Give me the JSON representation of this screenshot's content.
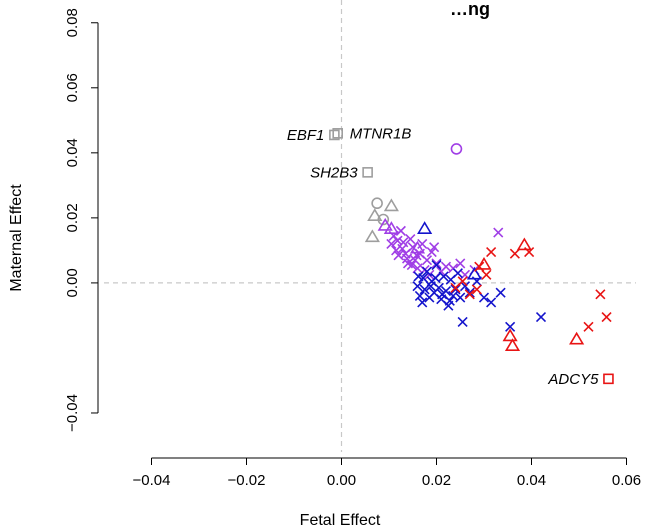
{
  "chart_data": {
    "type": "scatter",
    "title": "…ng",
    "xlabel": "Fetal Effect",
    "ylabel": "Maternal Effect",
    "xlim": [
      -0.05,
      0.062
    ],
    "ylim": [
      -0.052,
      0.087
    ],
    "xticks": [
      "-0.04",
      "-0.02",
      "0.00",
      "0.02",
      "0.04",
      "0.06"
    ],
    "yticks": [
      "-0.04",
      "0.00",
      "0.02",
      "0.04",
      "0.06",
      "0.08"
    ],
    "xtick_values": [
      -0.04,
      -0.02,
      0.0,
      0.02,
      0.04,
      0.06
    ],
    "ytick_values": [
      -0.04,
      0.0,
      0.02,
      0.04,
      0.06,
      0.08
    ],
    "reference_lines": {
      "x": 0,
      "y": 0,
      "style": "dashed"
    },
    "colors": {
      "grey": "#9e9e9e",
      "purple": "#a03ee6",
      "blue": "#1414cc",
      "red": "#e81414"
    },
    "series": [
      {
        "color": "grey",
        "marker": "square",
        "points": [
          {
            "x": -0.0015,
            "y": 0.0455,
            "label": "EBF1"
          },
          {
            "x": -0.0008,
            "y": 0.046,
            "label": "MTNR1B"
          },
          {
            "x": 0.0055,
            "y": 0.034,
            "label": "SH2B3"
          }
        ]
      },
      {
        "color": "grey",
        "marker": "circle",
        "points": [
          {
            "x": 0.0075,
            "y": 0.0245
          },
          {
            "x": 0.0088,
            "y": 0.0195
          }
        ]
      },
      {
        "color": "grey",
        "marker": "triangle",
        "points": [
          {
            "x": 0.0105,
            "y": 0.0235
          },
          {
            "x": 0.007,
            "y": 0.0205
          },
          {
            "x": 0.0065,
            "y": 0.014
          }
        ]
      },
      {
        "color": "purple",
        "marker": "circle",
        "points": [
          {
            "x": 0.0242,
            "y": 0.0412
          }
        ]
      },
      {
        "color": "purple",
        "marker": "triangle",
        "points": [
          {
            "x": 0.0092,
            "y": 0.0175
          },
          {
            "x": 0.0105,
            "y": 0.0165
          },
          {
            "x": 0.016,
            "y": 0.0105
          }
        ]
      },
      {
        "color": "purple",
        "marker": "cross",
        "points": [
          {
            "x": 0.0105,
            "y": 0.012
          },
          {
            "x": 0.011,
            "y": 0.0145
          },
          {
            "x": 0.0115,
            "y": 0.01
          },
          {
            "x": 0.012,
            "y": 0.0085
          },
          {
            "x": 0.0125,
            "y": 0.016
          },
          {
            "x": 0.013,
            "y": 0.0125
          },
          {
            "x": 0.0135,
            "y": 0.009
          },
          {
            "x": 0.014,
            "y": 0.006
          },
          {
            "x": 0.0145,
            "y": 0.0135
          },
          {
            "x": 0.015,
            "y": 0.011
          },
          {
            "x": 0.0155,
            "y": 0.007
          },
          {
            "x": 0.016,
            "y": 0.0045
          },
          {
            "x": 0.0165,
            "y": 0.009
          },
          {
            "x": 0.017,
            "y": 0.012
          },
          {
            "x": 0.0175,
            "y": 0.004
          },
          {
            "x": 0.018,
            "y": 0.007
          },
          {
            "x": 0.0185,
            "y": 0.0025
          },
          {
            "x": 0.019,
            "y": 0.0095
          },
          {
            "x": 0.0195,
            "y": 0.011
          },
          {
            "x": 0.02,
            "y": 0.006
          },
          {
            "x": 0.021,
            "y": 0.0035
          },
          {
            "x": 0.022,
            "y": 0.005
          },
          {
            "x": 0.0235,
            "y": 0.0045
          },
          {
            "x": 0.025,
            "y": 0.006
          },
          {
            "x": 0.026,
            "y": 0.0025
          },
          {
            "x": 0.028,
            "y": 0.004
          },
          {
            "x": 0.033,
            "y": 0.0155
          },
          {
            "x": 0.0128,
            "y": 0.0105
          },
          {
            "x": 0.0138,
            "y": 0.0075
          },
          {
            "x": 0.0148,
            "y": 0.0055
          },
          {
            "x": 0.0118,
            "y": 0.013
          },
          {
            "x": 0.0158,
            "y": 0.0085
          }
        ]
      },
      {
        "color": "blue",
        "marker": "triangle",
        "points": [
          {
            "x": 0.0175,
            "y": 0.0165
          },
          {
            "x": 0.028,
            "y": 0.0025
          }
        ]
      },
      {
        "color": "blue",
        "marker": "cross",
        "points": [
          {
            "x": 0.016,
            "y": -0.001
          },
          {
            "x": 0.0165,
            "y": -0.004
          },
          {
            "x": 0.017,
            "y": -0.006
          },
          {
            "x": 0.0175,
            "y": -0.002
          },
          {
            "x": 0.018,
            "y": 0.0035
          },
          {
            "x": 0.0185,
            "y": -0.0045
          },
          {
            "x": 0.019,
            "y": 0.0005
          },
          {
            "x": 0.0195,
            "y": -0.003
          },
          {
            "x": 0.02,
            "y": 0.0055
          },
          {
            "x": 0.0205,
            "y": -0.0015
          },
          {
            "x": 0.021,
            "y": -0.005
          },
          {
            "x": 0.0215,
            "y": 0.002
          },
          {
            "x": 0.022,
            "y": -0.0025
          },
          {
            "x": 0.0225,
            "y": -0.007
          },
          {
            "x": 0.023,
            "y": 0.001
          },
          {
            "x": 0.0235,
            "y": -0.004
          },
          {
            "x": 0.024,
            "y": -0.002
          },
          {
            "x": 0.0245,
            "y": 0.003
          },
          {
            "x": 0.025,
            "y": -0.0045
          },
          {
            "x": 0.026,
            "y": -0.001
          },
          {
            "x": 0.027,
            "y": -0.003
          },
          {
            "x": 0.0285,
            "y": 0.0005
          },
          {
            "x": 0.03,
            "y": -0.0045
          },
          {
            "x": 0.0315,
            "y": -0.006
          },
          {
            "x": 0.0335,
            "y": -0.003
          },
          {
            "x": 0.0255,
            "y": -0.012
          },
          {
            "x": 0.0355,
            "y": -0.0135
          },
          {
            "x": 0.042,
            "y": -0.0105
          },
          {
            "x": 0.0172,
            "y": 0.0015
          },
          {
            "x": 0.0188,
            "y": -0.001
          },
          {
            "x": 0.0198,
            "y": 0.0015
          },
          {
            "x": 0.0212,
            "y": -0.0035
          },
          {
            "x": 0.0228,
            "y": -0.0055
          },
          {
            "x": 0.0162,
            "y": 0.002
          }
        ]
      },
      {
        "color": "red",
        "marker": "triangle",
        "points": [
          {
            "x": 0.0385,
            "y": 0.0115
          },
          {
            "x": 0.03,
            "y": 0.0055
          },
          {
            "x": 0.0355,
            "y": -0.0165
          },
          {
            "x": 0.036,
            "y": -0.0195
          },
          {
            "x": 0.0495,
            "y": -0.0175
          }
        ]
      },
      {
        "color": "red",
        "marker": "square",
        "points": [
          {
            "x": 0.0562,
            "y": -0.0295,
            "label": "ADCY5"
          }
        ]
      },
      {
        "color": "red",
        "marker": "cross",
        "points": [
          {
            "x": 0.024,
            "y": -0.0015
          },
          {
            "x": 0.0255,
            "y": 0.0005
          },
          {
            "x": 0.027,
            "y": -0.0035
          },
          {
            "x": 0.029,
            "y": 0.005
          },
          {
            "x": 0.0305,
            "y": 0.0025
          },
          {
            "x": 0.0315,
            "y": 0.0095
          },
          {
            "x": 0.0365,
            "y": 0.009
          },
          {
            "x": 0.0395,
            "y": 0.0095
          },
          {
            "x": 0.0285,
            "y": -0.002
          },
          {
            "x": 0.052,
            "y": -0.0135
          },
          {
            "x": 0.0545,
            "y": -0.0035
          },
          {
            "x": 0.0558,
            "y": -0.0105
          }
        ]
      }
    ]
  }
}
